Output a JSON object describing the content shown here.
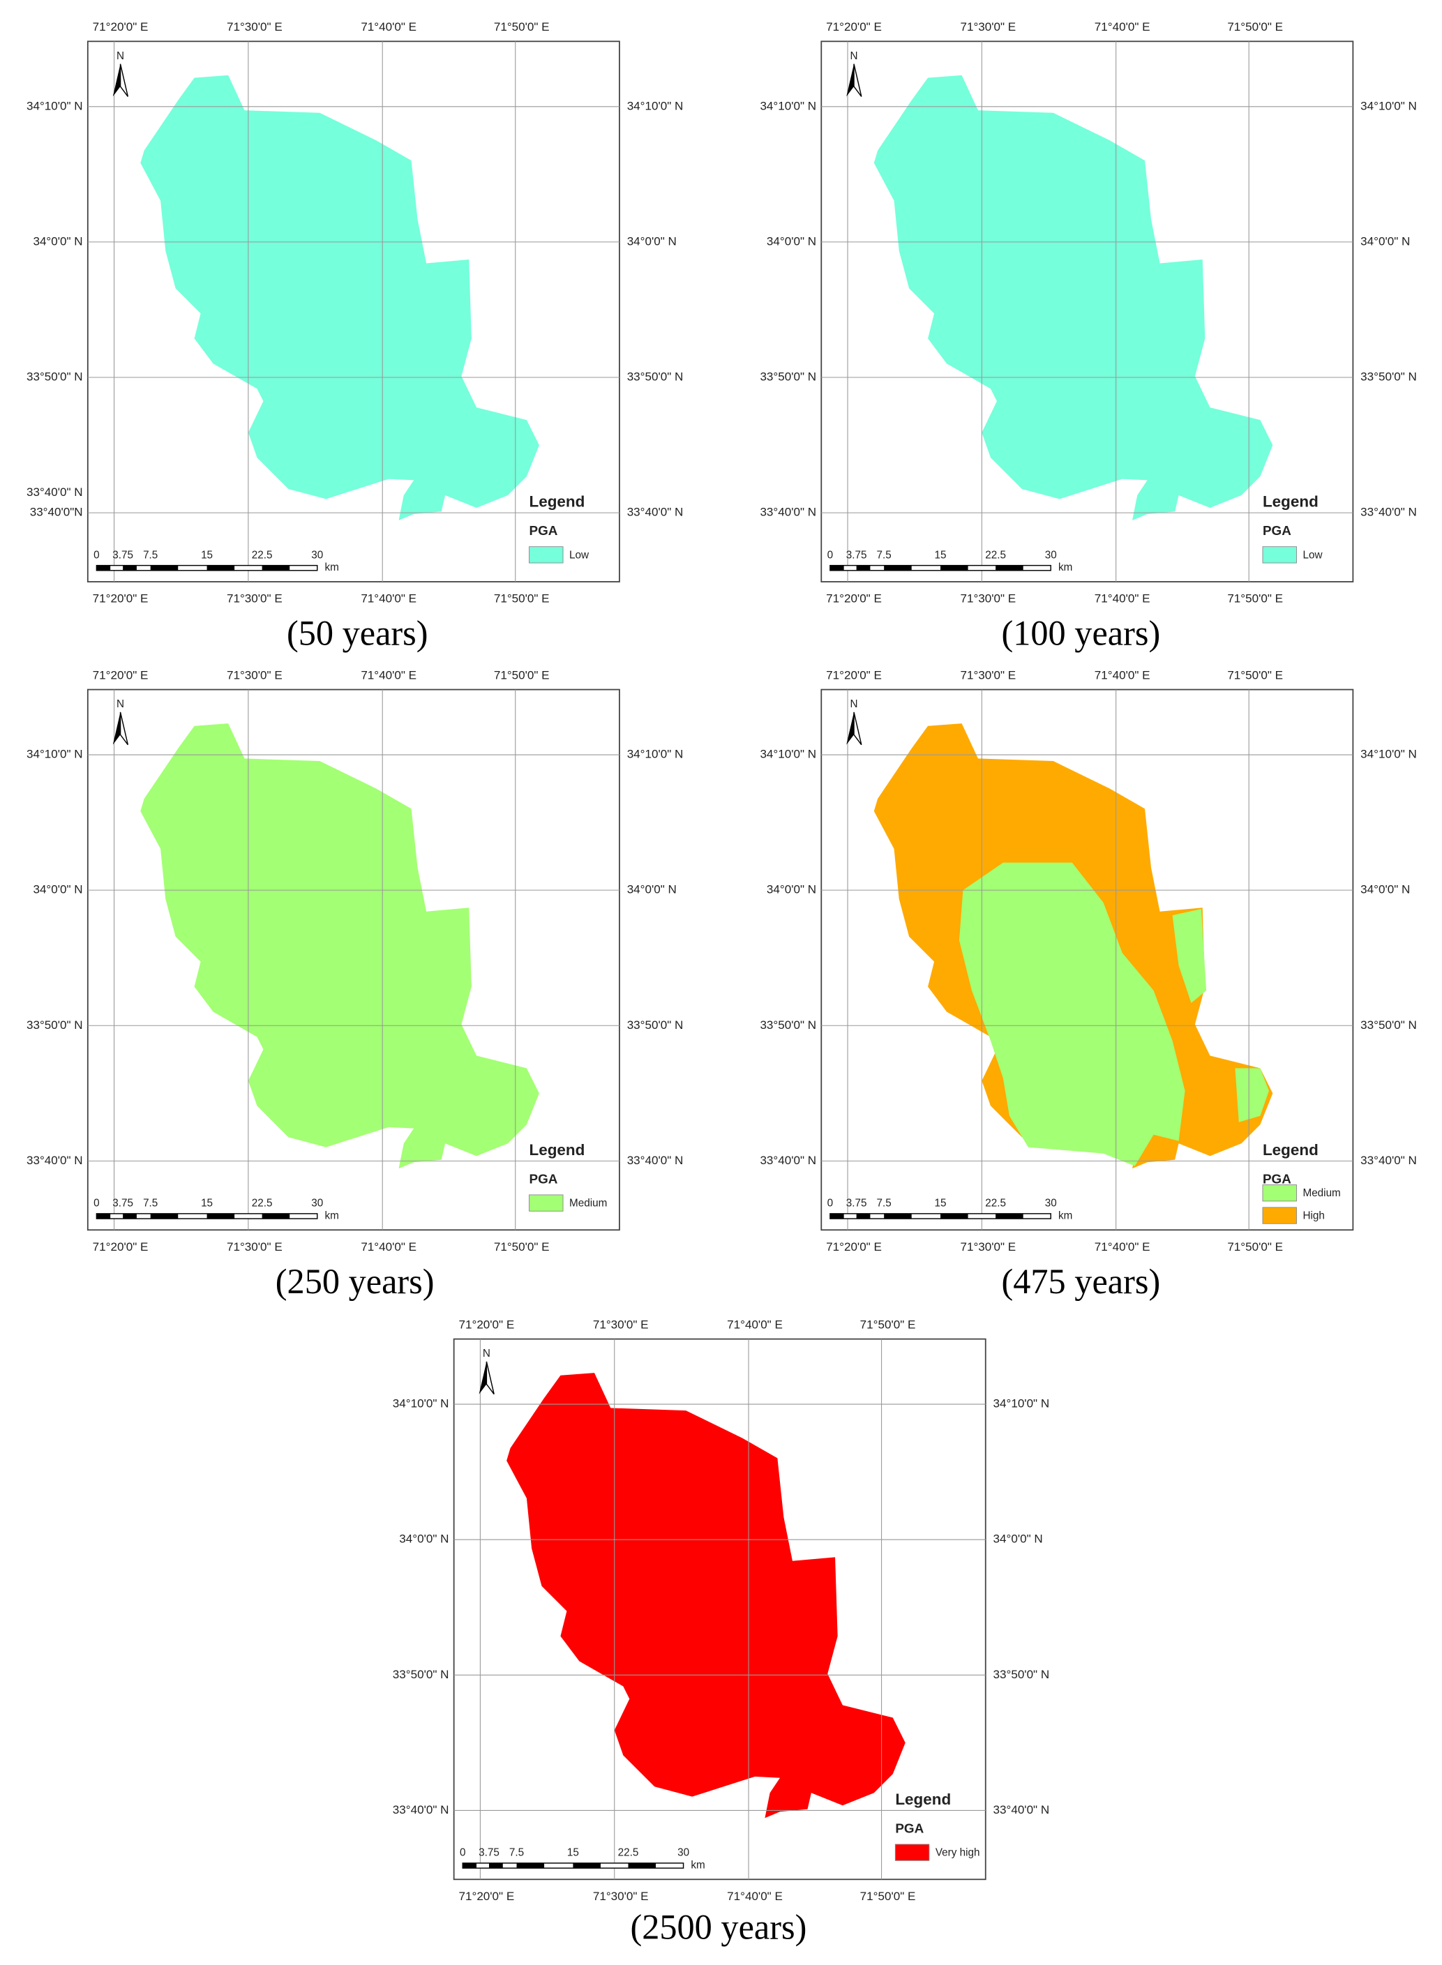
{
  "panels": [
    {
      "caption": "(50 years)",
      "top_labels": [
        "71°20'0\" E",
        "71°30'0\" E",
        "71°40'0\" E",
        "71°50'0\" E"
      ],
      "bottom_labels": [
        "71°20'0\" E",
        "71°30'0\" E",
        "71°40'0\" E",
        "71°50'0\" E"
      ],
      "left_labels": [
        "34°10'0\" N",
        "34°0'0\" N",
        "33°50'0\" N",
        "33°40'0\" N",
        "33°40'0\"N"
      ],
      "right_labels": [
        "34°10'0\" N",
        "34°0'0\" N",
        "33°50'0\" N",
        "33°40'0\" N"
      ],
      "north": "N",
      "legend_title": "Legend",
      "legend_subtitle": "PGA",
      "legend": [
        {
          "label": "Low",
          "color": "#75ffdb"
        }
      ],
      "scale_labels": [
        "0",
        "3.75",
        "7.5",
        "15",
        "22.5",
        "30"
      ],
      "scale_unit": "km"
    },
    {
      "caption": "(100 years)",
      "top_labels": [
        "71°20'0\" E",
        "71°30'0\" E",
        "71°40'0\" E",
        "71°50'0\" E"
      ],
      "bottom_labels": [
        "71°20'0\" E",
        "71°30'0\" E",
        "71°40'0\" E",
        "71°50'0\" E"
      ],
      "left_labels": [
        "34°10'0\" N",
        "34°0'0\" N",
        "33°50'0\" N",
        "33°40'0\" N"
      ],
      "right_labels": [
        "34°10'0\" N",
        "34°0'0\" N",
        "33°50'0\" N",
        "33°40'0\" N"
      ],
      "north": "N",
      "legend_title": "Legend",
      "legend_subtitle": "PGA",
      "legend": [
        {
          "label": "Low",
          "color": "#75ffdb"
        }
      ],
      "scale_labels": [
        "0",
        "3.75",
        "7.5",
        "15",
        "22.5",
        "30"
      ],
      "scale_unit": "km"
    },
    {
      "caption": "(250 years)",
      "top_labels": [
        "71°20'0\" E",
        "71°30'0\" E",
        "71°40'0\" E",
        "71°50'0\" E"
      ],
      "bottom_labels": [
        "71°20'0\" E",
        "71°30'0\" E",
        "71°40'0\" E",
        "71°50'0\" E"
      ],
      "left_labels": [
        "34°10'0\" N",
        "34°0'0\" N",
        "33°50'0\" N",
        "33°40'0\" N"
      ],
      "right_labels": [
        "34°10'0\" N",
        "34°0'0\" N",
        "33°50'0\" N",
        "33°40'0\" N"
      ],
      "north": "N",
      "legend_title": "Legend",
      "legend_subtitle": "PGA",
      "legend": [
        {
          "label": "Medium",
          "color": "#a3ff73"
        }
      ],
      "scale_labels": [
        "0",
        "3.75",
        "7.5",
        "15",
        "22.5",
        "30"
      ],
      "scale_unit": "km"
    },
    {
      "caption": "(475 years)",
      "top_labels": [
        "71°20'0\" E",
        "71°30'0\" E",
        "71°40'0\" E",
        "71°50'0\" E"
      ],
      "bottom_labels": [
        "71°20'0\" E",
        "71°30'0\" E",
        "71°40'0\" E",
        "71°50'0\" E"
      ],
      "left_labels": [
        "34°10'0\" N",
        "34°0'0\" N",
        "33°50'0\" N",
        "33°40'0\" N"
      ],
      "right_labels": [
        "34°10'0\" N",
        "34°0'0\" N",
        "33°50'0\" N",
        "33°40'0\" N"
      ],
      "north": "N",
      "legend_title": "Legend",
      "legend_subtitle": "PGA",
      "legend": [
        {
          "label": "Medium",
          "color": "#a3ff73"
        },
        {
          "label": "High",
          "color": "#ffaa00"
        }
      ],
      "scale_labels": [
        "0",
        "3.75",
        "7.5",
        "15",
        "22.5",
        "30"
      ],
      "scale_unit": "km"
    },
    {
      "caption": "(2500 years)",
      "top_labels": [
        "71°20'0\" E",
        "71°30'0\" E",
        "71°40'0\" E",
        "71°50'0\" E"
      ],
      "bottom_labels": [
        "71°20'0\" E",
        "71°30'0\" E",
        "71°40'0\" E",
        "71°50'0\" E"
      ],
      "left_labels": [
        "34°10'0\" N",
        "34°0'0\" N",
        "33°50'0\" N",
        "33°40'0\" N"
      ],
      "right_labels": [
        "34°10'0\" N",
        "34°0'0\" N",
        "33°50'0\" N",
        "33°40'0\" N"
      ],
      "north": "N",
      "legend_title": "Legend",
      "legend_subtitle": "PGA",
      "legend": [
        {
          "label": "Very high",
          "color": "#ff0000"
        }
      ],
      "scale_labels": [
        "0",
        "3.75",
        "7.5",
        "15",
        "22.5",
        "30"
      ],
      "scale_unit": "km"
    }
  ]
}
